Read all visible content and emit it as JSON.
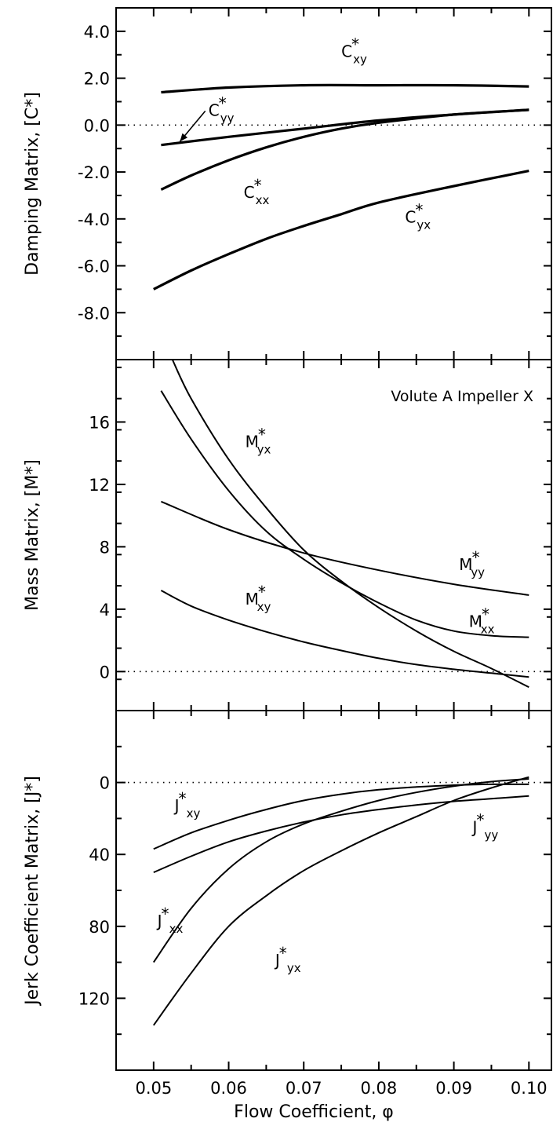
{
  "chart_data": {
    "type": "line",
    "xlabel": "Flow Coefficient, φ",
    "xlim": [
      0.045,
      0.103
    ],
    "xticks": [
      "0.05",
      "0.06",
      "0.07",
      "0.08",
      "0.09",
      "0.10"
    ],
    "xtick_values": [
      0.05,
      0.06,
      0.07,
      0.08,
      0.09,
      0.1
    ],
    "panels": [
      {
        "id": "damping",
        "ylabel": "Damping Matrix, [C*]",
        "ylim": [
          -10.0,
          5.0
        ],
        "inverted": false,
        "yticks": [
          "4.0",
          "2.0",
          "0.0",
          "-2.0",
          "-4.0",
          "-6.0",
          "-8.0"
        ],
        "ytick_values": [
          4,
          2,
          0,
          -2,
          -4,
          -6,
          -8
        ],
        "annotation": "",
        "series": [
          {
            "name": "C*xy",
            "base": "C",
            "sub": "xy",
            "x": [
              0.051,
              0.06,
              0.07,
              0.08,
              0.09,
              0.1
            ],
            "y": [
              1.4,
              1.6,
              1.7,
              1.7,
              1.7,
              1.65
            ],
            "label_x": 0.075,
            "label_y": 2.9
          },
          {
            "name": "C*yy",
            "base": "C",
            "sub": "yy",
            "x": [
              0.051,
              0.06,
              0.07,
              0.08,
              0.09,
              0.1
            ],
            "y": [
              -0.85,
              -0.5,
              -0.15,
              0.2,
              0.45,
              0.65
            ],
            "label_x": 0.0573,
            "label_y": 0.4
          },
          {
            "name": "C*xx",
            "base": "C",
            "sub": "xx",
            "x": [
              0.051,
              0.055,
              0.06,
              0.065,
              0.07,
              0.075,
              0.08,
              0.09,
              0.1
            ],
            "y": [
              -2.75,
              -2.15,
              -1.5,
              -0.95,
              -0.5,
              -0.15,
              0.1,
              0.45,
              0.65
            ],
            "label_x": 0.062,
            "label_y": -3.1
          },
          {
            "name": "C*yx",
            "base": "C",
            "sub": "yx",
            "x": [
              0.05,
              0.055,
              0.06,
              0.065,
              0.07,
              0.075,
              0.08,
              0.09,
              0.1
            ],
            "y": [
              -7.0,
              -6.2,
              -5.5,
              -4.85,
              -4.3,
              -3.8,
              -3.3,
              -2.6,
              -1.95
            ],
            "label_x": 0.0835,
            "label_y": -4.15
          }
        ]
      },
      {
        "id": "mass",
        "ylabel": "Mass Matrix, [M*]",
        "ylim": [
          -2.5,
          20.0
        ],
        "inverted": false,
        "yticks": [
          "16",
          "12",
          "8",
          "4",
          "0"
        ],
        "ytick_values": [
          16,
          12,
          8,
          4,
          0
        ],
        "annotation": "Volute A Impeller X",
        "series": [
          {
            "name": "M*yx",
            "base": "M",
            "sub": "yx",
            "x": [
              0.051,
              0.055,
              0.06,
              0.065,
              0.07,
              0.075,
              0.08,
              0.085,
              0.09,
              0.095,
              0.1
            ],
            "y": [
              18.0,
              14.9,
              11.6,
              9.0,
              7.2,
              5.7,
              4.4,
              3.3,
              2.6,
              2.3,
              2.2
            ],
            "label_x": 0.0622,
            "label_y": 14.4
          },
          {
            "name": "M*xx",
            "base": "M",
            "sub": "xx",
            "x": [
              0.0525,
              0.055,
              0.06,
              0.065,
              0.07,
              0.075,
              0.08,
              0.085,
              0.09,
              0.095,
              0.1
            ],
            "y": [
              20.0,
              17.5,
              13.6,
              10.5,
              7.8,
              5.8,
              4.1,
              2.6,
              1.3,
              0.2,
              -1.0
            ],
            "label_x": 0.092,
            "label_y": 2.85
          },
          {
            "name": "M*yy",
            "base": "M",
            "sub": "yy",
            "x": [
              0.051,
              0.06,
              0.07,
              0.08,
              0.09,
              0.1
            ],
            "y": [
              10.9,
              9.1,
              7.6,
              6.5,
              5.6,
              4.9
            ],
            "label_x": 0.0907,
            "label_y": 6.5
          },
          {
            "name": "M*xy",
            "base": "M",
            "sub": "xy",
            "x": [
              0.051,
              0.055,
              0.06,
              0.065,
              0.07,
              0.075,
              0.08,
              0.085,
              0.09,
              0.095,
              0.1
            ],
            "y": [
              5.2,
              4.2,
              3.3,
              2.55,
              1.9,
              1.35,
              0.85,
              0.45,
              0.15,
              -0.1,
              -0.35
            ],
            "label_x": 0.0622,
            "label_y": 4.3
          }
        ]
      },
      {
        "id": "jerk",
        "ylabel": "Jerk Coefficient Matrix, [J*]",
        "ylim": [
          -40,
          160
        ],
        "inverted": true,
        "yticks": [
          "0",
          "40",
          "80",
          "120"
        ],
        "ytick_values": [
          0,
          40,
          80,
          120
        ],
        "annotation": "",
        "series": [
          {
            "name": "J*xy",
            "base": "J",
            "sub": "xy",
            "x": [
              0.05,
              0.055,
              0.06,
              0.065,
              0.07,
              0.075,
              0.08,
              0.085,
              0.09,
              0.095,
              0.1
            ],
            "y": [
              37,
              28,
              21,
              15,
              10,
              6.5,
              4,
              2.5,
              1.5,
              1,
              1
            ],
            "label_x": 0.0528,
            "label_y": 16
          },
          {
            "name": "J*yy",
            "base": "J",
            "sub": "yy",
            "x": [
              0.05,
              0.055,
              0.06,
              0.065,
              0.07,
              0.075,
              0.08,
              0.085,
              0.09,
              0.095,
              0.1
            ],
            "y": [
              50,
              41,
              33,
              27,
              22,
              18,
              15,
              12.5,
              10.5,
              9,
              7.5
            ],
            "label_x": 0.0925,
            "label_y": 28
          },
          {
            "name": "J*xx",
            "base": "J",
            "sub": "xx",
            "x": [
              0.05,
              0.055,
              0.06,
              0.065,
              0.07,
              0.075,
              0.08,
              0.085,
              0.09,
              0.095,
              0.1
            ],
            "y": [
              100,
              70,
              48,
              33,
              23,
              16,
              10,
              5.5,
              2,
              -0.5,
              -2
            ],
            "label_x": 0.0505,
            "label_y": 80
          },
          {
            "name": "J*yx",
            "base": "J",
            "sub": "yx",
            "x": [
              0.05,
              0.055,
              0.06,
              0.065,
              0.07,
              0.075,
              0.08,
              0.085,
              0.09,
              0.095,
              0.1
            ],
            "y": [
              135,
              106,
              80,
              63,
              49,
              38,
              28,
              19,
              10,
              3,
              -3
            ],
            "label_x": 0.0662,
            "label_y": 102
          }
        ]
      }
    ]
  }
}
